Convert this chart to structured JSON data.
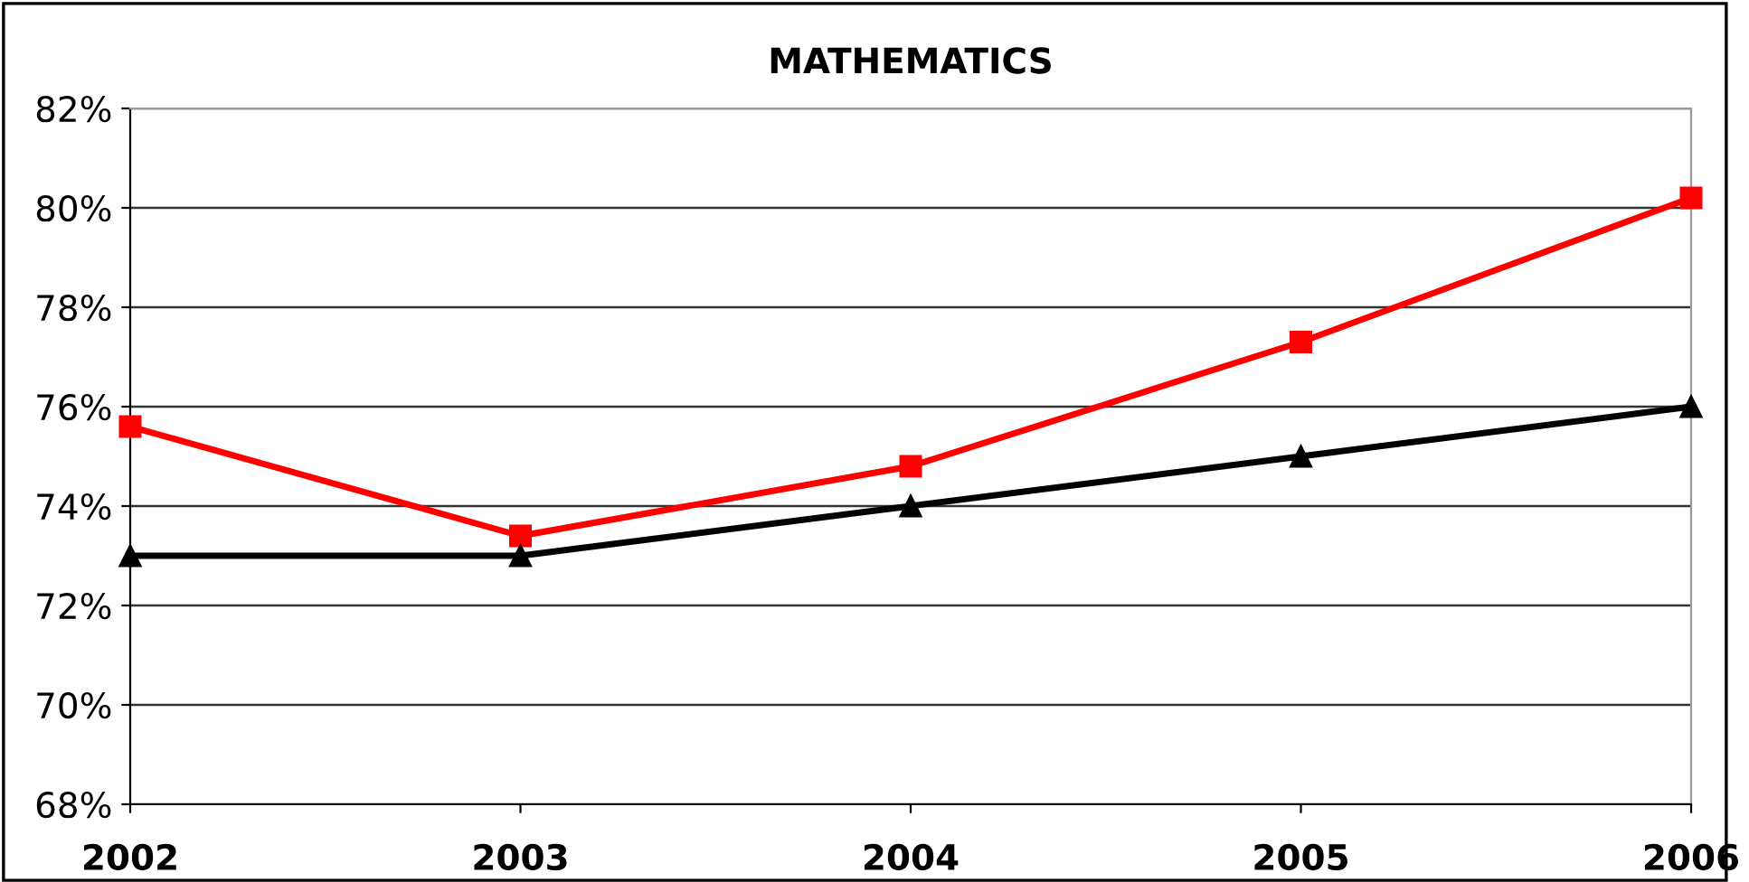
{
  "chart_data": {
    "type": "line",
    "title": "MATHEMATICS",
    "x": [
      2002,
      2003,
      2004,
      2005,
      2006
    ],
    "series": [
      {
        "color": "#ff0000",
        "marker": "square",
        "values": [
          75.6,
          73.4,
          74.8,
          77.3,
          80.2
        ]
      },
      {
        "color": "#000000",
        "marker": "triangle",
        "values": [
          73,
          73,
          74,
          75,
          76
        ]
      }
    ],
    "xlim": [
      2002,
      2006
    ],
    "xticks": [
      2002,
      2003,
      2004,
      2005,
      2006
    ],
    "ylim": [
      68,
      82
    ],
    "yticks": [
      {
        "value": 68,
        "label": "68%"
      },
      {
        "value": 70,
        "label": "70%"
      },
      {
        "value": 72,
        "label": "72%"
      },
      {
        "value": 74,
        "label": "74%"
      },
      {
        "value": 76,
        "label": "76%"
      },
      {
        "value": 78,
        "label": "78%"
      },
      {
        "value": 80,
        "label": "80%"
      },
      {
        "value": 82,
        "label": "82%"
      }
    ],
    "grid": "y",
    "legend": false,
    "line_style": "solid"
  }
}
